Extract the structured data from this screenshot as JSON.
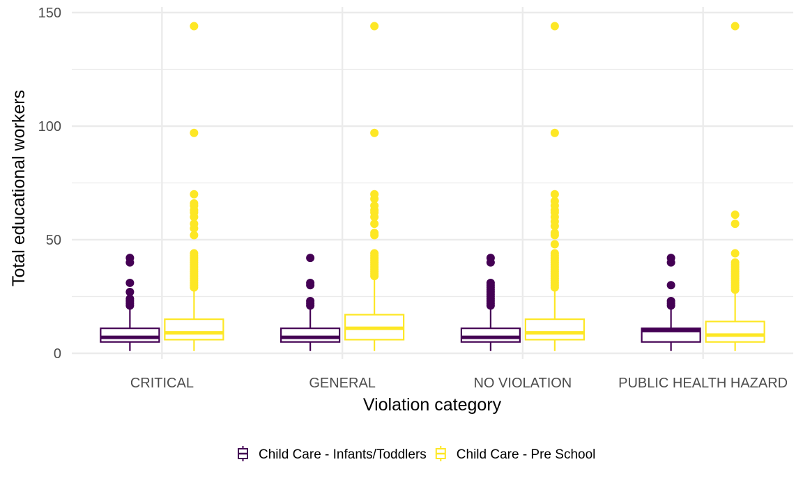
{
  "chart_data": {
    "type": "boxplot",
    "title": "",
    "xlabel": "Violation category",
    "ylabel": "Total educational workers",
    "ylim": [
      0,
      150
    ],
    "y_ticks": [
      0,
      50,
      100,
      150
    ],
    "categories": [
      "CRITICAL",
      "GENERAL",
      "NO VIOLATION",
      "PUBLIC HEALTH HAZARD"
    ],
    "grid": true,
    "legend_position": "bottom",
    "series": [
      {
        "name": "Child Care - Infants/Toddlers",
        "color": "#440154",
        "boxes": [
          {
            "min": 1,
            "q1": 5,
            "median": 7,
            "q3": 11,
            "max": 20,
            "outliers": [
              21,
              22,
              23,
              24,
              27,
              31,
              40,
              42
            ]
          },
          {
            "min": 1,
            "q1": 5,
            "median": 7,
            "q3": 11,
            "max": 20,
            "outliers": [
              21,
              22,
              23,
              30,
              31,
              42
            ]
          },
          {
            "min": 1,
            "q1": 5,
            "median": 7,
            "q3": 11,
            "max": 20,
            "outliers": [
              21,
              22,
              23,
              24,
              25,
              26,
              27,
              28,
              29,
              30,
              31,
              40,
              42
            ]
          },
          {
            "min": 1,
            "q1": 5,
            "median": 10,
            "q3": 11,
            "max": 20,
            "outliers": [
              21,
              22,
              23,
              30,
              40,
              42
            ]
          }
        ]
      },
      {
        "name": "Child Care - Pre School",
        "color": "#FDE725",
        "boxes": [
          {
            "min": 1,
            "q1": 6,
            "median": 9,
            "q3": 15,
            "max": 28,
            "outliers": [
              29,
              30,
              31,
              32,
              33,
              34,
              35,
              36,
              37,
              38,
              39,
              40,
              41,
              42,
              43,
              44,
              52,
              55,
              57,
              60,
              62,
              63,
              65,
              66,
              70,
              97,
              144
            ]
          },
          {
            "min": 1,
            "q1": 6,
            "median": 11,
            "q3": 17,
            "max": 33,
            "outliers": [
              34,
              35,
              36,
              37,
              38,
              39,
              40,
              41,
              42,
              43,
              44,
              52,
              53,
              57,
              60,
              62,
              63,
              65,
              68,
              70,
              97,
              144
            ]
          },
          {
            "min": 1,
            "q1": 6,
            "median": 9,
            "q3": 15,
            "max": 28,
            "outliers": [
              29,
              30,
              31,
              32,
              33,
              34,
              35,
              36,
              37,
              38,
              39,
              40,
              41,
              42,
              43,
              44,
              48,
              52,
              53,
              56,
              58,
              60,
              62,
              63,
              65,
              67,
              70,
              97,
              144
            ]
          },
          {
            "min": 1,
            "q1": 5,
            "median": 8,
            "q3": 14,
            "max": 27,
            "outliers": [
              28,
              29,
              30,
              31,
              32,
              33,
              34,
              35,
              36,
              37,
              38,
              39,
              40,
              44,
              57,
              61,
              144
            ]
          }
        ]
      }
    ]
  }
}
